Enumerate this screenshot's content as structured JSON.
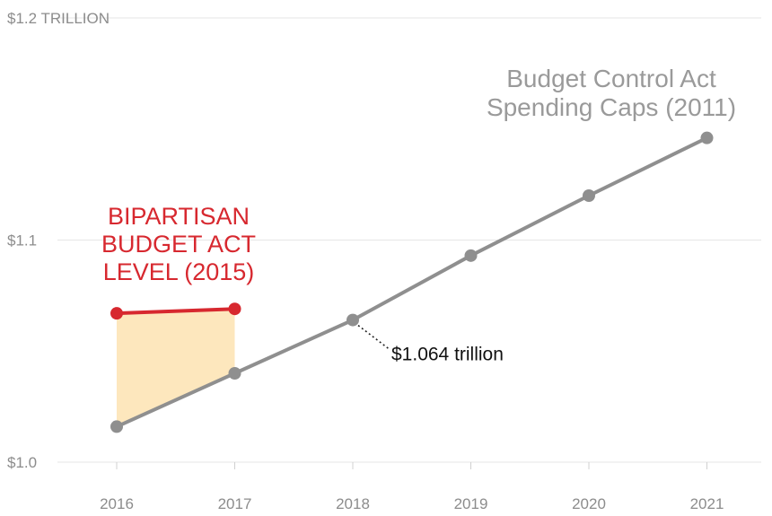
{
  "chart_data": {
    "type": "line",
    "title": "",
    "xlabel": "",
    "ylabel": "",
    "categories": [
      "2016",
      "2017",
      "2018",
      "2019",
      "2020",
      "2021"
    ],
    "ylim": [
      1.0,
      1.2
    ],
    "y_ticks": [
      {
        "value": 1.0,
        "label": "$1.0"
      },
      {
        "value": 1.1,
        "label": "$1.1"
      },
      {
        "value": 1.2,
        "label": "$1.2 TRILLION"
      }
    ],
    "grid": true,
    "series": [
      {
        "name": "Budget Control Act Spending Caps (2011)",
        "label_lines": [
          "Budget Control Act",
          "Spending Caps (2011)"
        ],
        "color": "#8f8f8f",
        "x": [
          "2016",
          "2017",
          "2018",
          "2019",
          "2020",
          "2021"
        ],
        "values": [
          1.016,
          1.04,
          1.064,
          1.093,
          1.12,
          1.146
        ]
      },
      {
        "name": "BIPARTISAN BUDGET ACT LEVEL (2015)",
        "label_lines": [
          "BIPARTISAN",
          "BUDGET ACT",
          "LEVEL (2015)"
        ],
        "color": "#d7282f",
        "x": [
          "2016",
          "2017"
        ],
        "values": [
          1.067,
          1.069
        ]
      }
    ],
    "shaded_area": {
      "between": [
        "BIPARTISAN BUDGET ACT LEVEL (2015)",
        "Budget Control Act Spending Caps (2011)"
      ],
      "x": [
        "2016",
        "2017"
      ],
      "color": "#fde7bd"
    },
    "annotations": [
      {
        "x": "2018",
        "y": 1.064,
        "text": "$1.064 trillion"
      }
    ]
  }
}
